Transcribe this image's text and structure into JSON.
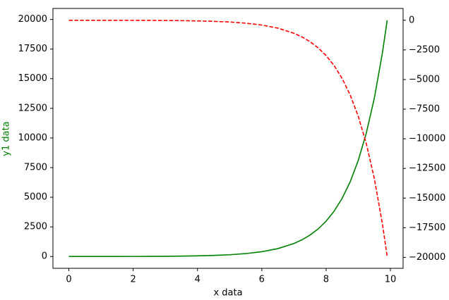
{
  "chart_data": {
    "type": "line",
    "xlabel": "x data",
    "ylabel": "y1 data",
    "ylabel_color": "green",
    "x": [
      0,
      0.5,
      1,
      1.5,
      2,
      2.5,
      3,
      3.5,
      4,
      4.5,
      5,
      5.5,
      6,
      6.5,
      7,
      7.25,
      7.5,
      7.75,
      8,
      8.25,
      8.5,
      8.75,
      9,
      9.25,
      9.5,
      9.75,
      9.9
    ],
    "series": [
      {
        "color": "green",
        "dash": false,
        "values": [
          1,
          2,
          3,
          4,
          7,
          12,
          20,
          33,
          55,
          90,
          148,
          245,
          403,
          665,
          1097,
          1408,
          1808,
          2322,
          2981,
          3827,
          4915,
          6311,
          8103,
          10405,
          13360,
          17154,
          19930
        ]
      },
      {
        "color": "red",
        "dash": true,
        "axis": "y2",
        "values": [
          -1,
          -2,
          -3,
          -4,
          -7,
          -12,
          -20,
          -33,
          -55,
          -90,
          -148,
          -245,
          -403,
          -665,
          -1097,
          -1408,
          -1808,
          -2322,
          -2981,
          -3827,
          -4915,
          -6311,
          -8103,
          -10405,
          -13360,
          -17154,
          -19930
        ]
      }
    ],
    "xlim": [
      -0.495,
      10.395
    ],
    "xticks": [
      0,
      2,
      4,
      6,
      8,
      10
    ],
    "ylim": [
      -996,
      20926
    ],
    "yticks": [
      0,
      2500,
      5000,
      7500,
      10000,
      12500,
      15000,
      17500,
      20000
    ],
    "y2lim": [
      -20926,
      996
    ],
    "y2ticks": [
      0,
      {
        "value": -2500,
        "label": "−2500"
      },
      {
        "value": -5000,
        "label": "−5000"
      },
      {
        "value": -7500,
        "label": "−7500"
      },
      {
        "value": -10000,
        "label": "−10000"
      },
      {
        "value": -12500,
        "label": "−12500"
      },
      {
        "value": -15000,
        "label": "−15000"
      },
      {
        "value": -17500,
        "label": "−17500"
      },
      {
        "value": -20000,
        "label": "−20000"
      }
    ]
  }
}
